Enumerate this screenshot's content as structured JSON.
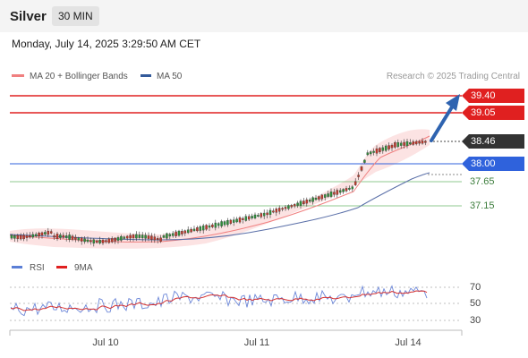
{
  "header": {
    "title": "Silver",
    "interval": "30 MIN",
    "datetime": "Monday, July 14, 2025 3:29:50 AM CET"
  },
  "legend": {
    "items": [
      {
        "label": "MA 20 + Bollinger Bands",
        "color": "#f08080"
      },
      {
        "label": "MA 50",
        "color": "#335a9a"
      }
    ],
    "credit": "Research © 2025 Trading Central"
  },
  "levels": [
    {
      "label": "39.40",
      "style": "resistance",
      "color": "#e02020"
    },
    {
      "label": "39.05",
      "style": "resistance",
      "color": "#e02020"
    },
    {
      "label": "38.46",
      "style": "current",
      "color": "#333333"
    },
    {
      "label": "38.00",
      "style": "pivot",
      "color": "#2f62dc"
    },
    {
      "label": "37.65",
      "style": "support",
      "color": "#6ab86a"
    },
    {
      "label": "37.15",
      "style": "support",
      "color": "#6ab86a"
    }
  ],
  "rsi_legend": {
    "items": [
      {
        "label": "RSI",
        "color": "#5b7fd6"
      },
      {
        "label": "9MA",
        "color": "#e02020"
      }
    ]
  },
  "rsi_ticks": [
    "70",
    "50",
    "30"
  ],
  "x_labels": [
    "Jul 10",
    "Jul 11",
    "Jul 14"
  ]
}
